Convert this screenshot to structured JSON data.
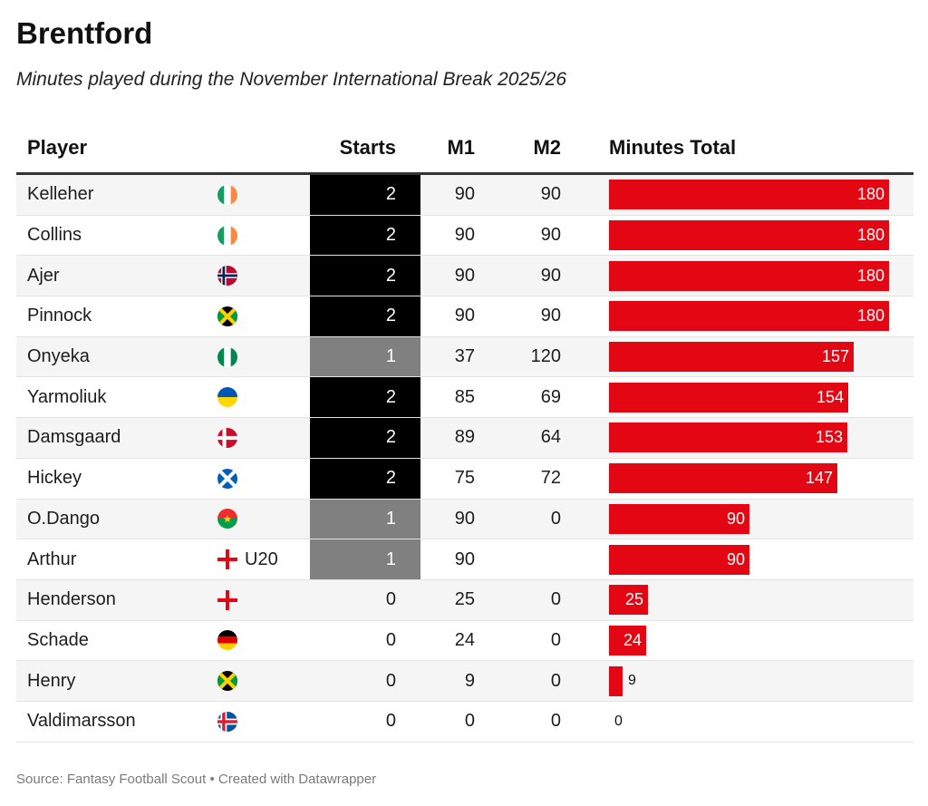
{
  "title": "Brentford",
  "subtitle": "Minutes played during the November International Break 2025/26",
  "source": "Source: Fantasy Football Scout • Created with Datawrapper",
  "colors": {
    "bar": "#e30613",
    "starts_2": "#000000",
    "starts_1": "#808080"
  },
  "chart_data": {
    "type": "table",
    "title": "Brentford",
    "subtitle": "Minutes played during the November International Break 2025/26",
    "columns": [
      "Player",
      "Starts",
      "M1",
      "M2",
      "Minutes Total"
    ],
    "bar_max": 180,
    "rows": [
      {
        "player": "Kelleher",
        "flag": "ireland-flag-icon",
        "suffix": "",
        "starts": "2",
        "m1": "90",
        "m2": "90",
        "total": 180
      },
      {
        "player": "Collins",
        "flag": "ireland-flag-icon",
        "suffix": "",
        "starts": "2",
        "m1": "90",
        "m2": "90",
        "total": 180
      },
      {
        "player": "Ajer",
        "flag": "norway-flag-icon",
        "suffix": "",
        "starts": "2",
        "m1": "90",
        "m2": "90",
        "total": 180
      },
      {
        "player": "Pinnock",
        "flag": "jamaica-flag-icon",
        "suffix": "",
        "starts": "2",
        "m1": "90",
        "m2": "90",
        "total": 180
      },
      {
        "player": "Onyeka",
        "flag": "nigeria-flag-icon",
        "suffix": "",
        "starts": "1",
        "m1": "37",
        "m2": "120",
        "total": 157
      },
      {
        "player": "Yarmoliuk",
        "flag": "ukraine-flag-icon",
        "suffix": "",
        "starts": "2",
        "m1": "85",
        "m2": "69",
        "total": 154
      },
      {
        "player": "Damsgaard",
        "flag": "denmark-flag-icon",
        "suffix": "",
        "starts": "2",
        "m1": "89",
        "m2": "64",
        "total": 153
      },
      {
        "player": "Hickey",
        "flag": "scotland-flag-icon",
        "suffix": "",
        "starts": "2",
        "m1": "75",
        "m2": "72",
        "total": 147
      },
      {
        "player": "O.Dango",
        "flag": "burkina-faso-flag-icon",
        "suffix": "",
        "starts": "1",
        "m1": "90",
        "m2": "0",
        "total": 90
      },
      {
        "player": "Arthur",
        "flag": "england-flag-icon",
        "suffix": "U20",
        "starts": "1",
        "m1": "90",
        "m2": "",
        "total": 90
      },
      {
        "player": "Henderson",
        "flag": "england-flag-icon",
        "suffix": "",
        "starts": "0",
        "m1": "25",
        "m2": "0",
        "total": 25
      },
      {
        "player": "Schade",
        "flag": "germany-flag-icon",
        "suffix": "",
        "starts": "0",
        "m1": "24",
        "m2": "0",
        "total": 24
      },
      {
        "player": "Henry",
        "flag": "jamaica-flag-icon",
        "suffix": "",
        "starts": "0",
        "m1": "9",
        "m2": "0",
        "total": 9
      },
      {
        "player": "Valdimarsson",
        "flag": "iceland-flag-icon",
        "suffix": "",
        "starts": "0",
        "m1": "0",
        "m2": "0",
        "total": 0
      }
    ]
  }
}
